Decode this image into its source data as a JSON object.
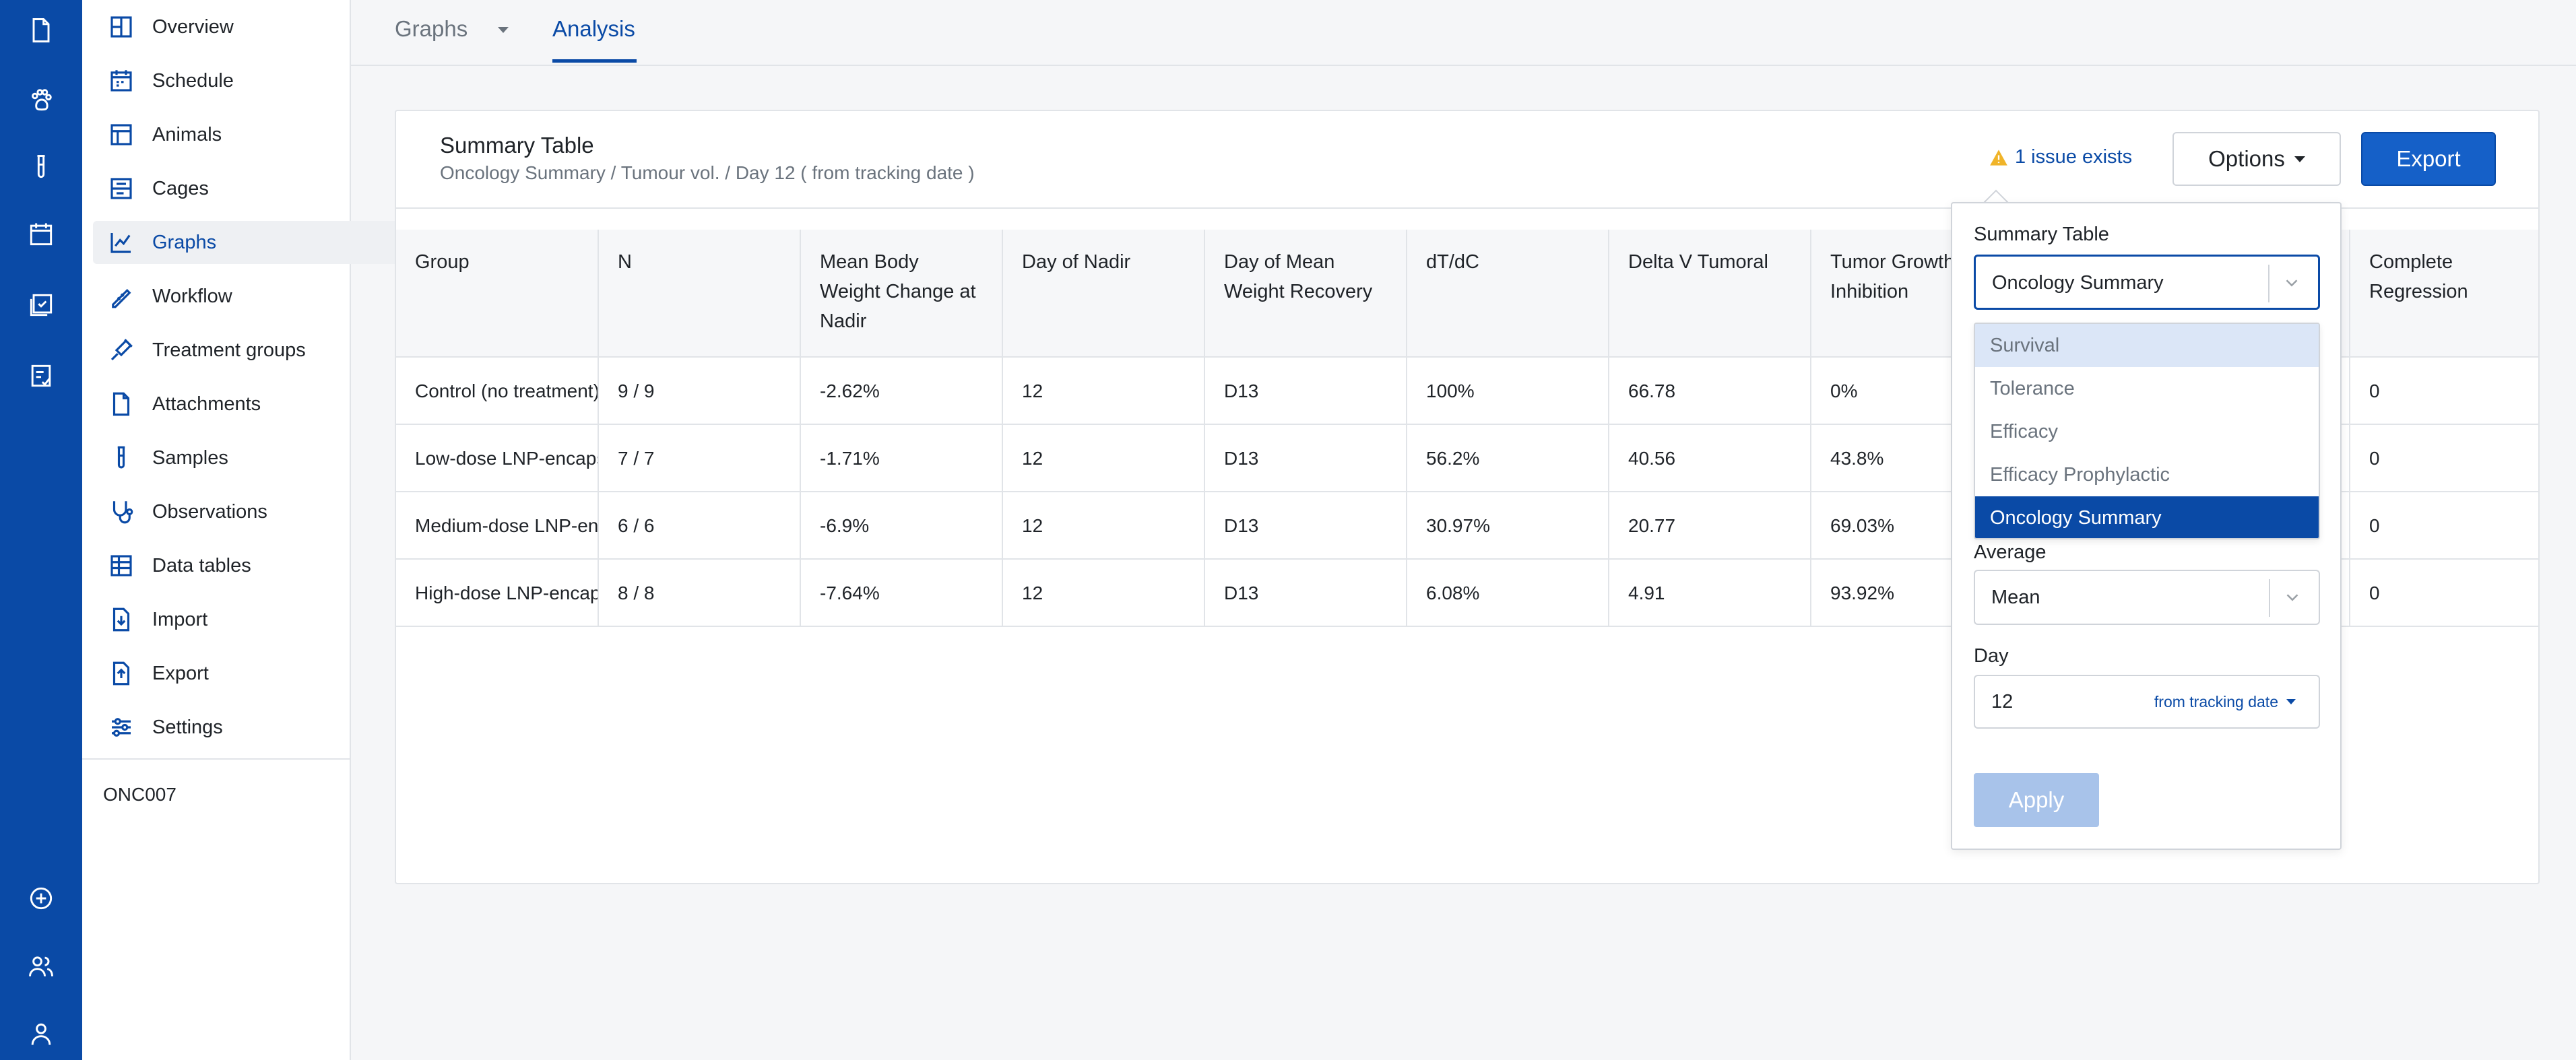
{
  "rail": {
    "icons": [
      "document-icon",
      "paw-icon",
      "test-tube-icon",
      "calendar-icon",
      "calendar-check-icon",
      "checklist-icon",
      "add-circle-icon",
      "users-icon",
      "user-icon"
    ]
  },
  "sidebar": {
    "items": [
      {
        "label": "Overview",
        "icon": "overview-icon"
      },
      {
        "label": "Schedule",
        "icon": "schedule-icon"
      },
      {
        "label": "Animals",
        "icon": "animals-icon"
      },
      {
        "label": "Cages",
        "icon": "cages-icon"
      },
      {
        "label": "Graphs",
        "icon": "graphs-icon"
      },
      {
        "label": "Workflow",
        "icon": "workflow-icon"
      },
      {
        "label": "Treatment groups",
        "icon": "treatment-groups-icon"
      },
      {
        "label": "Attachments",
        "icon": "attachments-icon"
      },
      {
        "label": "Samples",
        "icon": "samples-icon"
      },
      {
        "label": "Observations",
        "icon": "observations-icon"
      },
      {
        "label": "Data tables",
        "icon": "data-tables-icon"
      },
      {
        "label": "Import",
        "icon": "import-icon"
      },
      {
        "label": "Export",
        "icon": "export-icon"
      },
      {
        "label": "Settings",
        "icon": "settings-icon"
      }
    ],
    "active": "Graphs",
    "project_code": "ONC007"
  },
  "tabs": {
    "graphs": "Graphs",
    "analysis": "Analysis",
    "active": "Analysis"
  },
  "card": {
    "title": "Summary Table",
    "subtitle": "Oncology Summary / Tumour vol. / Day 12 ( from tracking date )",
    "issue_text": "1 issue exists",
    "options_label": "Options",
    "export_label": "Export"
  },
  "table": {
    "columns": [
      "Group",
      "N",
      "Mean Body Weight Change at Nadir",
      "Day of Nadir",
      "Day of Mean Weight Recovery",
      "dT/dC",
      "Delta V Tumoral",
      "Tumor Growth Inhibition",
      "",
      "Complete Regression"
    ],
    "rows": [
      [
        "Control (no treatment)",
        "9 / 9",
        "-2.62%",
        "12",
        "D13",
        "100%",
        "66.78",
        "0%",
        "",
        "0"
      ],
      [
        "Low-dose LNP-encapsulated",
        "7 / 7",
        "-1.71%",
        "12",
        "D13",
        "56.2%",
        "40.56",
        "43.8%",
        "",
        "0"
      ],
      [
        "Medium-dose LNP-encapsulated",
        "6 / 6",
        "-6.9%",
        "12",
        "D13",
        "30.97%",
        "20.77",
        "69.03%",
        "",
        "0"
      ],
      [
        "High-dose LNP-encapsulated",
        "8 / 8",
        "-7.64%",
        "12",
        "D13",
        "6.08%",
        "4.91",
        "93.92%",
        "",
        "0"
      ]
    ]
  },
  "options": {
    "summary_label": "Summary Table",
    "summary_value": "Oncology Summary",
    "menu_items": [
      "Survival",
      "Tolerance",
      "Efficacy",
      "Efficacy Prophylactic",
      "Oncology Summary"
    ],
    "menu_hover": "Survival",
    "menu_selected": "Oncology Summary",
    "average_label": "Average",
    "average_value": "Mean",
    "day_label": "Day",
    "day_value": "12",
    "day_mode": "from tracking date",
    "apply_label": "Apply"
  },
  "colors": {
    "brand": "#0a4aa6",
    "accent_button": "#1560c8",
    "warning": "#f0b429",
    "disabled": "#a8c3ea"
  }
}
